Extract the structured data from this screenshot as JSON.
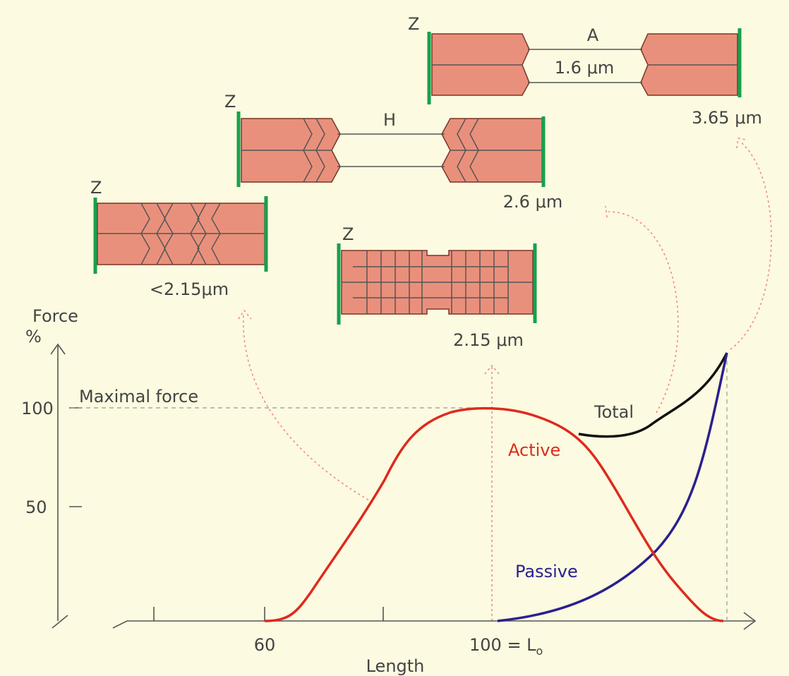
{
  "sarcomeres": [
    {
      "z": "Z",
      "band": "A",
      "width": "1.6 μm",
      "length": "3.65 μm"
    },
    {
      "z": "Z",
      "band": "H",
      "length": "2.6 μm"
    },
    {
      "z": "Z",
      "length": "<2.15μm"
    },
    {
      "z": "Z",
      "length": "2.15 μm"
    }
  ],
  "axis": {
    "y_title": "Force",
    "y_unit": "%",
    "y_ticks": [
      "100",
      "50"
    ],
    "x_ticks": [
      "60",
      "100 = L"
    ],
    "x_subscript": "o",
    "x_title": "Length"
  },
  "annotation": "Maximal force",
  "curves": {
    "total": "Total",
    "active": "Active",
    "passive": "Passive"
  }
}
